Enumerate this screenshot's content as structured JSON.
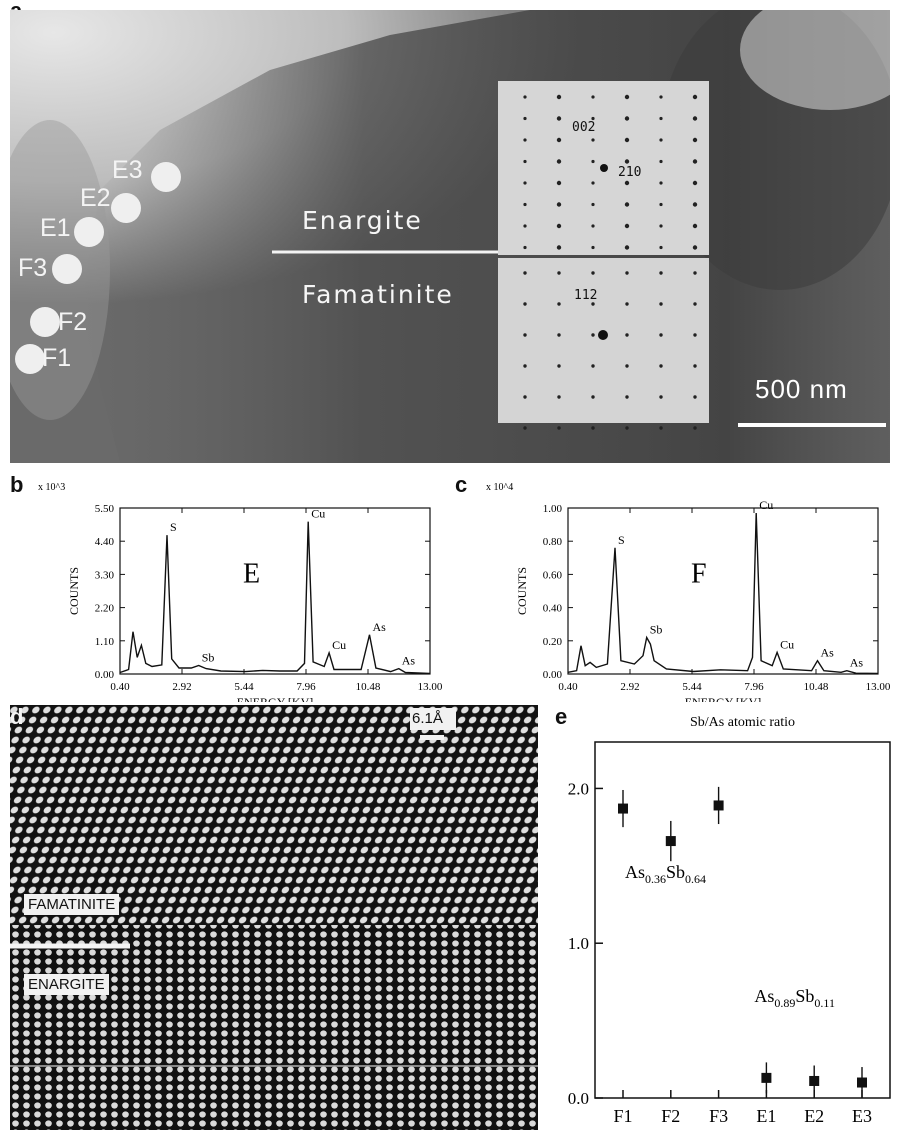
{
  "panels": {
    "a": "a",
    "b": "b",
    "c": "c",
    "d": "d",
    "e": "e"
  },
  "panel_a": {
    "spots": [
      "E3",
      "E2",
      "E1",
      "F3",
      "F2",
      "F1"
    ],
    "phase_top": "Enargite",
    "phase_bottom": "Famatinite",
    "diffraction_top": [
      "002",
      "210"
    ],
    "diffraction_bottom": [
      "112"
    ],
    "scale_bar": "500 nm"
  },
  "panel_d": {
    "labels": [
      "FAMATINITE",
      "ENARGITE"
    ],
    "scale": "6.1Å"
  },
  "chart_data": [
    {
      "type": "line",
      "panel": "b",
      "annotation": "E",
      "xlabel": "ENERGY [KV]",
      "ylabel": "COUNTS",
      "multiplier": "x 10^3",
      "xticks": [
        "0.40",
        "2.92",
        "5.44",
        "7.96",
        "10.48",
        "13.00"
      ],
      "yticks": [
        "0.00",
        "1.10",
        "2.20",
        "3.30",
        "4.40",
        "5.50"
      ],
      "xlim": [
        0.4,
        13.0
      ],
      "ylim": [
        0,
        5.5
      ],
      "peaks": [
        {
          "label": "S",
          "x": 2.31,
          "y": 4.6
        },
        {
          "label": "Sb",
          "x": 3.6,
          "y": 0.28
        },
        {
          "label": "Cu",
          "x": 8.05,
          "y": 5.05
        },
        {
          "label": "Cu",
          "x": 8.9,
          "y": 0.7
        },
        {
          "label": "As",
          "x": 10.54,
          "y": 1.3
        },
        {
          "label": "As",
          "x": 11.73,
          "y": 0.18
        }
      ],
      "spectrum": [
        [
          0.4,
          0.05
        ],
        [
          0.75,
          0.15
        ],
        [
          0.93,
          1.4
        ],
        [
          1.1,
          0.55
        ],
        [
          1.27,
          0.95
        ],
        [
          1.45,
          0.35
        ],
        [
          1.7,
          0.25
        ],
        [
          2.1,
          0.3
        ],
        [
          2.31,
          4.6
        ],
        [
          2.5,
          0.5
        ],
        [
          2.8,
          0.2
        ],
        [
          3.3,
          0.2
        ],
        [
          3.6,
          0.28
        ],
        [
          3.9,
          0.18
        ],
        [
          4.5,
          0.1
        ],
        [
          5.5,
          0.08
        ],
        [
          6.2,
          0.12
        ],
        [
          6.9,
          0.1
        ],
        [
          7.6,
          0.1
        ],
        [
          7.9,
          0.35
        ],
        [
          8.05,
          5.05
        ],
        [
          8.25,
          0.4
        ],
        [
          8.7,
          0.25
        ],
        [
          8.9,
          0.7
        ],
        [
          9.1,
          0.15
        ],
        [
          10.2,
          0.15
        ],
        [
          10.54,
          1.3
        ],
        [
          10.8,
          0.2
        ],
        [
          11.4,
          0.08
        ],
        [
          11.73,
          0.18
        ],
        [
          12.0,
          0.05
        ],
        [
          13.0,
          0.02
        ]
      ]
    },
    {
      "type": "line",
      "panel": "c",
      "annotation": "F",
      "xlabel": "ENERGY [KV]",
      "ylabel": "COUNTS",
      "multiplier": "x 10^4",
      "xticks": [
        "0.40",
        "2.92",
        "5.44",
        "7.96",
        "10.48",
        "13.00"
      ],
      "yticks": [
        "0.00",
        "0.20",
        "0.40",
        "0.60",
        "0.80",
        "1.00"
      ],
      "xlim": [
        0.4,
        13.0
      ],
      "ylim": [
        0,
        1.0
      ],
      "peaks": [
        {
          "label": "S",
          "x": 2.31,
          "y": 0.76
        },
        {
          "label": "Sb",
          "x": 3.6,
          "y": 0.22
        },
        {
          "label": "Cu",
          "x": 8.05,
          "y": 0.97
        },
        {
          "label": "Cu",
          "x": 8.9,
          "y": 0.13
        },
        {
          "label": "As",
          "x": 10.54,
          "y": 0.08
        },
        {
          "label": "As",
          "x": 11.73,
          "y": 0.02
        }
      ],
      "spectrum": [
        [
          0.4,
          0.01
        ],
        [
          0.75,
          0.02
        ],
        [
          0.93,
          0.17
        ],
        [
          1.1,
          0.05
        ],
        [
          1.3,
          0.07
        ],
        [
          1.55,
          0.04
        ],
        [
          2.0,
          0.06
        ],
        [
          2.31,
          0.76
        ],
        [
          2.55,
          0.08
        ],
        [
          3.1,
          0.06
        ],
        [
          3.45,
          0.11
        ],
        [
          3.6,
          0.22
        ],
        [
          3.75,
          0.18
        ],
        [
          3.9,
          0.08
        ],
        [
          4.4,
          0.03
        ],
        [
          5.5,
          0.015
        ],
        [
          6.6,
          0.025
        ],
        [
          7.7,
          0.02
        ],
        [
          7.9,
          0.1
        ],
        [
          8.05,
          0.97
        ],
        [
          8.25,
          0.08
        ],
        [
          8.7,
          0.05
        ],
        [
          8.9,
          0.13
        ],
        [
          9.15,
          0.03
        ],
        [
          10.3,
          0.02
        ],
        [
          10.54,
          0.08
        ],
        [
          10.8,
          0.02
        ],
        [
          11.5,
          0.01
        ],
        [
          11.73,
          0.02
        ],
        [
          12.1,
          0.005
        ],
        [
          13.0,
          0.003
        ]
      ]
    },
    {
      "type": "scatter",
      "panel": "e",
      "title": "Sb/As atomic ratio",
      "categories": [
        "F1",
        "F2",
        "F3",
        "E1",
        "E2",
        "E3"
      ],
      "values": [
        1.87,
        1.66,
        1.89,
        0.13,
        0.11,
        0.1
      ],
      "errors": [
        0.12,
        0.13,
        0.12,
        0.1,
        0.1,
        0.1
      ],
      "yticks": [
        "0.0",
        "1.0",
        "2.0"
      ],
      "ylim": [
        0,
        2.3
      ],
      "annotations": [
        {
          "text": "As",
          "sub1": "0.36",
          "mid": "Sb",
          "sub2": "0.64"
        },
        {
          "text": "As",
          "sub1": "0.89",
          "mid": "Sb",
          "sub2": "0.11"
        }
      ]
    }
  ]
}
